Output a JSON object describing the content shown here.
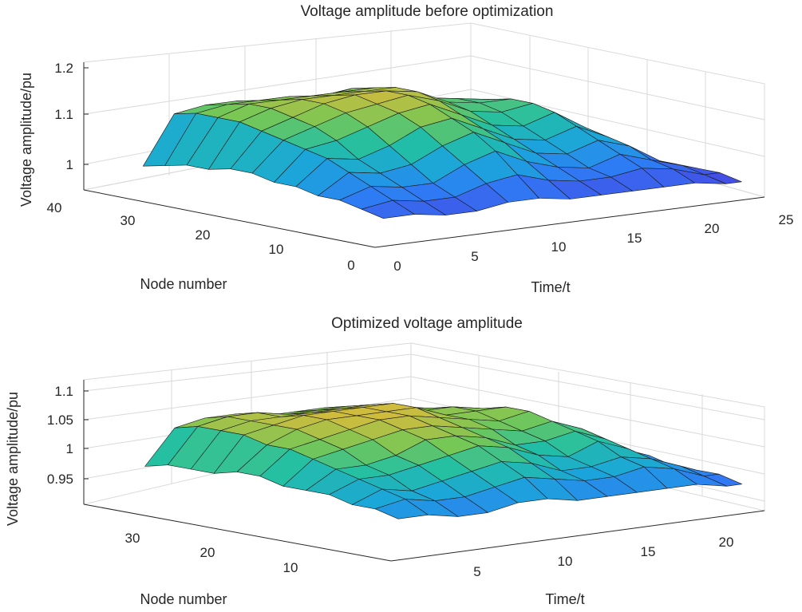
{
  "chart_data": [
    {
      "type": "surface",
      "title": "Voltage amplitude before optimization",
      "xlabel": "Time/t",
      "ylabel": "Node number",
      "zlabel": "Voltage amplitude/pu",
      "x_range": [
        0,
        25
      ],
      "y_range": [
        0,
        40
      ],
      "z_range": [
        0.95,
        1.2
      ],
      "x_ticks": [
        "0",
        "5",
        "10",
        "15",
        "20",
        "25"
      ],
      "y_ticks": [
        "0",
        "10",
        "20",
        "30",
        "40"
      ],
      "z_ticks": [
        "1",
        "1.1",
        "1.2"
      ],
      "grid": true,
      "x": [
        1,
        3,
        5,
        7,
        9,
        11,
        13,
        15,
        17,
        19,
        21,
        23,
        24
      ],
      "node_groups": [
        1,
        4,
        7,
        10,
        13,
        16,
        19,
        22,
        25,
        28,
        31,
        34
      ],
      "z": [
        [
          1.0,
          1.0,
          0.99,
          0.99,
          1.0,
          1.0,
          0.99,
          0.99,
          0.99,
          0.99,
          0.99,
          0.98,
          0.98
        ],
        [
          1.01,
          1.02,
          1.01,
          1.01,
          1.03,
          1.04,
          1.02,
          1.01,
          1.01,
          1.02,
          1.01,
          0.99,
          0.99
        ],
        [
          1.02,
          1.04,
          1.03,
          1.03,
          1.06,
          1.08,
          1.05,
          1.03,
          1.02,
          1.04,
          1.02,
          1.0,
          0.99
        ],
        [
          1.02,
          1.06,
          1.05,
          1.06,
          1.09,
          1.11,
          1.08,
          1.05,
          1.04,
          1.06,
          1.04,
          1.0,
          0.99
        ],
        [
          1.03,
          1.08,
          1.07,
          1.09,
          1.12,
          1.13,
          1.1,
          1.07,
          1.06,
          1.08,
          1.05,
          1.01,
          0.99
        ],
        [
          1.03,
          1.09,
          1.1,
          1.12,
          1.14,
          1.15,
          1.12,
          1.09,
          1.08,
          1.1,
          1.06,
          1.01,
          1.0
        ],
        [
          1.04,
          1.1,
          1.12,
          1.14,
          1.15,
          1.16,
          1.14,
          1.11,
          1.1,
          1.11,
          1.07,
          1.02,
          1.0
        ],
        [
          1.04,
          1.11,
          1.13,
          1.15,
          1.16,
          1.16,
          1.15,
          1.12,
          1.11,
          1.11,
          1.07,
          1.02,
          1.0
        ],
        [
          1.03,
          1.12,
          1.14,
          1.15,
          1.15,
          1.15,
          1.15,
          1.12,
          1.11,
          1.1,
          1.06,
          1.02,
          1.0
        ],
        [
          1.03,
          1.12,
          1.14,
          1.14,
          1.14,
          1.14,
          1.14,
          1.11,
          1.1,
          1.09,
          1.05,
          1.01,
          1.0
        ],
        [
          1.02,
          1.12,
          1.13,
          1.13,
          1.13,
          1.12,
          1.13,
          1.1,
          1.09,
          1.07,
          1.04,
          1.01,
          0.99
        ],
        [
          1.01,
          1.11,
          1.12,
          1.12,
          1.11,
          1.1,
          1.11,
          1.08,
          1.07,
          1.05,
          1.03,
          1.0,
          0.99
        ]
      ]
    },
    {
      "type": "surface",
      "title": "Optimized voltage amplitude",
      "xlabel": "Time/t",
      "ylabel": "Node number",
      "zlabel": "Voltage amplitude/pu",
      "x_range": [
        0,
        25
      ],
      "y_range": [
        0,
        40
      ],
      "z_range": [
        0.9,
        1.1
      ],
      "x_ticks": [
        "5",
        "10",
        "15",
        "20"
      ],
      "y_ticks": [
        "10",
        "20",
        "30"
      ],
      "z_ticks": [
        "0.95",
        "1",
        "1.05",
        "1.1"
      ],
      "grid": true,
      "x": [
        1,
        3,
        5,
        7,
        9,
        11,
        13,
        15,
        17,
        19,
        21,
        23,
        24
      ],
      "node_groups": [
        1,
        4,
        7,
        10,
        13,
        16,
        19,
        22,
        25,
        28,
        31,
        34
      ],
      "z": [
        [
          0.97,
          0.97,
          0.96,
          0.96,
          0.97,
          0.97,
          0.96,
          0.96,
          0.96,
          0.96,
          0.96,
          0.95,
          0.95
        ],
        [
          0.98,
          0.99,
          0.98,
          0.98,
          0.99,
          1.0,
          0.99,
          0.98,
          0.98,
          0.99,
          0.98,
          0.96,
          0.96
        ],
        [
          0.98,
          1.0,
          0.99,
          1.0,
          1.01,
          1.02,
          1.01,
          0.99,
          0.99,
          1.0,
          0.99,
          0.97,
          0.96
        ],
        [
          0.99,
          1.01,
          1.01,
          1.02,
          1.03,
          1.04,
          1.03,
          1.01,
          1.0,
          1.02,
          1.0,
          0.97,
          0.96
        ],
        [
          0.99,
          1.02,
          1.02,
          1.03,
          1.05,
          1.05,
          1.04,
          1.02,
          1.02,
          1.03,
          1.01,
          0.98,
          0.97
        ],
        [
          0.99,
          1.03,
          1.04,
          1.05,
          1.06,
          1.06,
          1.05,
          1.04,
          1.03,
          1.04,
          1.02,
          0.98,
          0.97
        ],
        [
          1.0,
          1.04,
          1.05,
          1.06,
          1.07,
          1.07,
          1.06,
          1.05,
          1.04,
          1.05,
          1.02,
          0.99,
          0.97
        ],
        [
          1.0,
          1.04,
          1.06,
          1.07,
          1.07,
          1.07,
          1.07,
          1.05,
          1.05,
          1.05,
          1.02,
          0.99,
          0.97
        ],
        [
          0.99,
          1.05,
          1.06,
          1.07,
          1.07,
          1.07,
          1.07,
          1.05,
          1.05,
          1.04,
          1.02,
          0.99,
          0.97
        ],
        [
          0.99,
          1.05,
          1.06,
          1.06,
          1.06,
          1.06,
          1.06,
          1.05,
          1.04,
          1.03,
          1.01,
          0.98,
          0.97
        ],
        [
          0.99,
          1.05,
          1.06,
          1.06,
          1.05,
          1.05,
          1.05,
          1.04,
          1.03,
          1.02,
          1.0,
          0.98,
          0.96
        ],
        [
          0.98,
          1.04,
          1.05,
          1.05,
          1.04,
          1.04,
          1.04,
          1.03,
          1.02,
          1.01,
          0.99,
          0.97,
          0.96
        ]
      ]
    }
  ],
  "colormap": [
    "#3e26a8",
    "#4350e6",
    "#2f7bf5",
    "#1ba5da",
    "#23bfa4",
    "#76c755",
    "#d4bb3c",
    "#fcd22e"
  ]
}
